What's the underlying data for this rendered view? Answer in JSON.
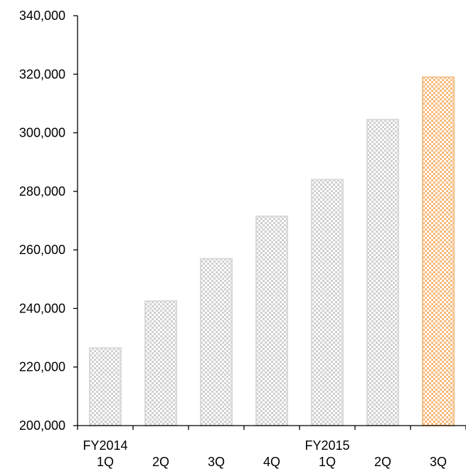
{
  "chart_data": {
    "type": "bar",
    "title": "",
    "xlabel": "",
    "ylabel": "",
    "ylim": [
      200000,
      340000
    ],
    "yticks": [
      {
        "value": 200000,
        "label": "200,000"
      },
      {
        "value": 220000,
        "label": "220,000"
      },
      {
        "value": 240000,
        "label": "240,000"
      },
      {
        "value": 260000,
        "label": "260,000"
      },
      {
        "value": 280000,
        "label": "280,000"
      },
      {
        "value": 300000,
        "label": "300,000"
      },
      {
        "value": 320000,
        "label": "320,000"
      },
      {
        "value": 340000,
        "label": "340,000"
      }
    ],
    "categories": [
      {
        "quarter": "1Q",
        "year": "FY2014"
      },
      {
        "quarter": "2Q",
        "year": ""
      },
      {
        "quarter": "3Q",
        "year": ""
      },
      {
        "quarter": "4Q",
        "year": ""
      },
      {
        "quarter": "1Q",
        "year": "FY2015"
      },
      {
        "quarter": "2Q",
        "year": ""
      },
      {
        "quarter": "3Q",
        "year": ""
      }
    ],
    "values": [
      226500,
      242500,
      257000,
      271500,
      284000,
      304500,
      319000
    ],
    "highlight_index": 6,
    "grid": false,
    "colors": {
      "bar_border": "#d9d9d9",
      "bar_pattern": "#d0d0d0",
      "highlight_border": "#f5c08a",
      "highlight_pattern": "#f7b97a",
      "axis": "#000000"
    }
  }
}
